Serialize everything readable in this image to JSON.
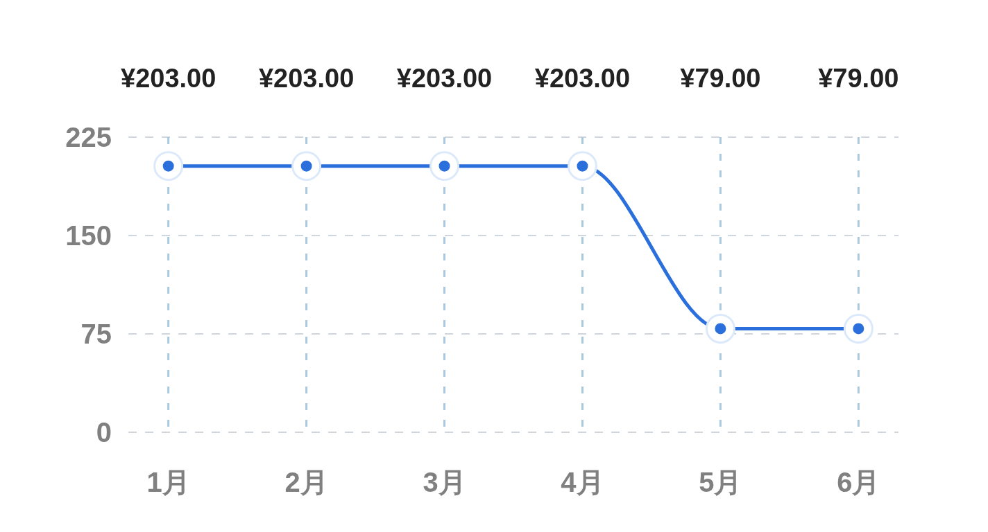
{
  "chart_data": {
    "type": "line",
    "categories": [
      "1月",
      "2月",
      "3月",
      "4月",
      "5月",
      "6月"
    ],
    "series": [
      {
        "color": "#2a6fdb",
        "values": [
          203,
          203,
          203,
          203,
          79,
          79
        ],
        "value_labels": [
          "¥203.00",
          "¥203.00",
          "¥203.00",
          "¥203.00",
          "¥79.00",
          "¥79.00"
        ]
      }
    ],
    "ylim": [
      0,
      225
    ],
    "yticks": [
      0,
      75,
      150,
      225
    ],
    "grid": true,
    "marker": "circle",
    "line_style": "solid"
  }
}
